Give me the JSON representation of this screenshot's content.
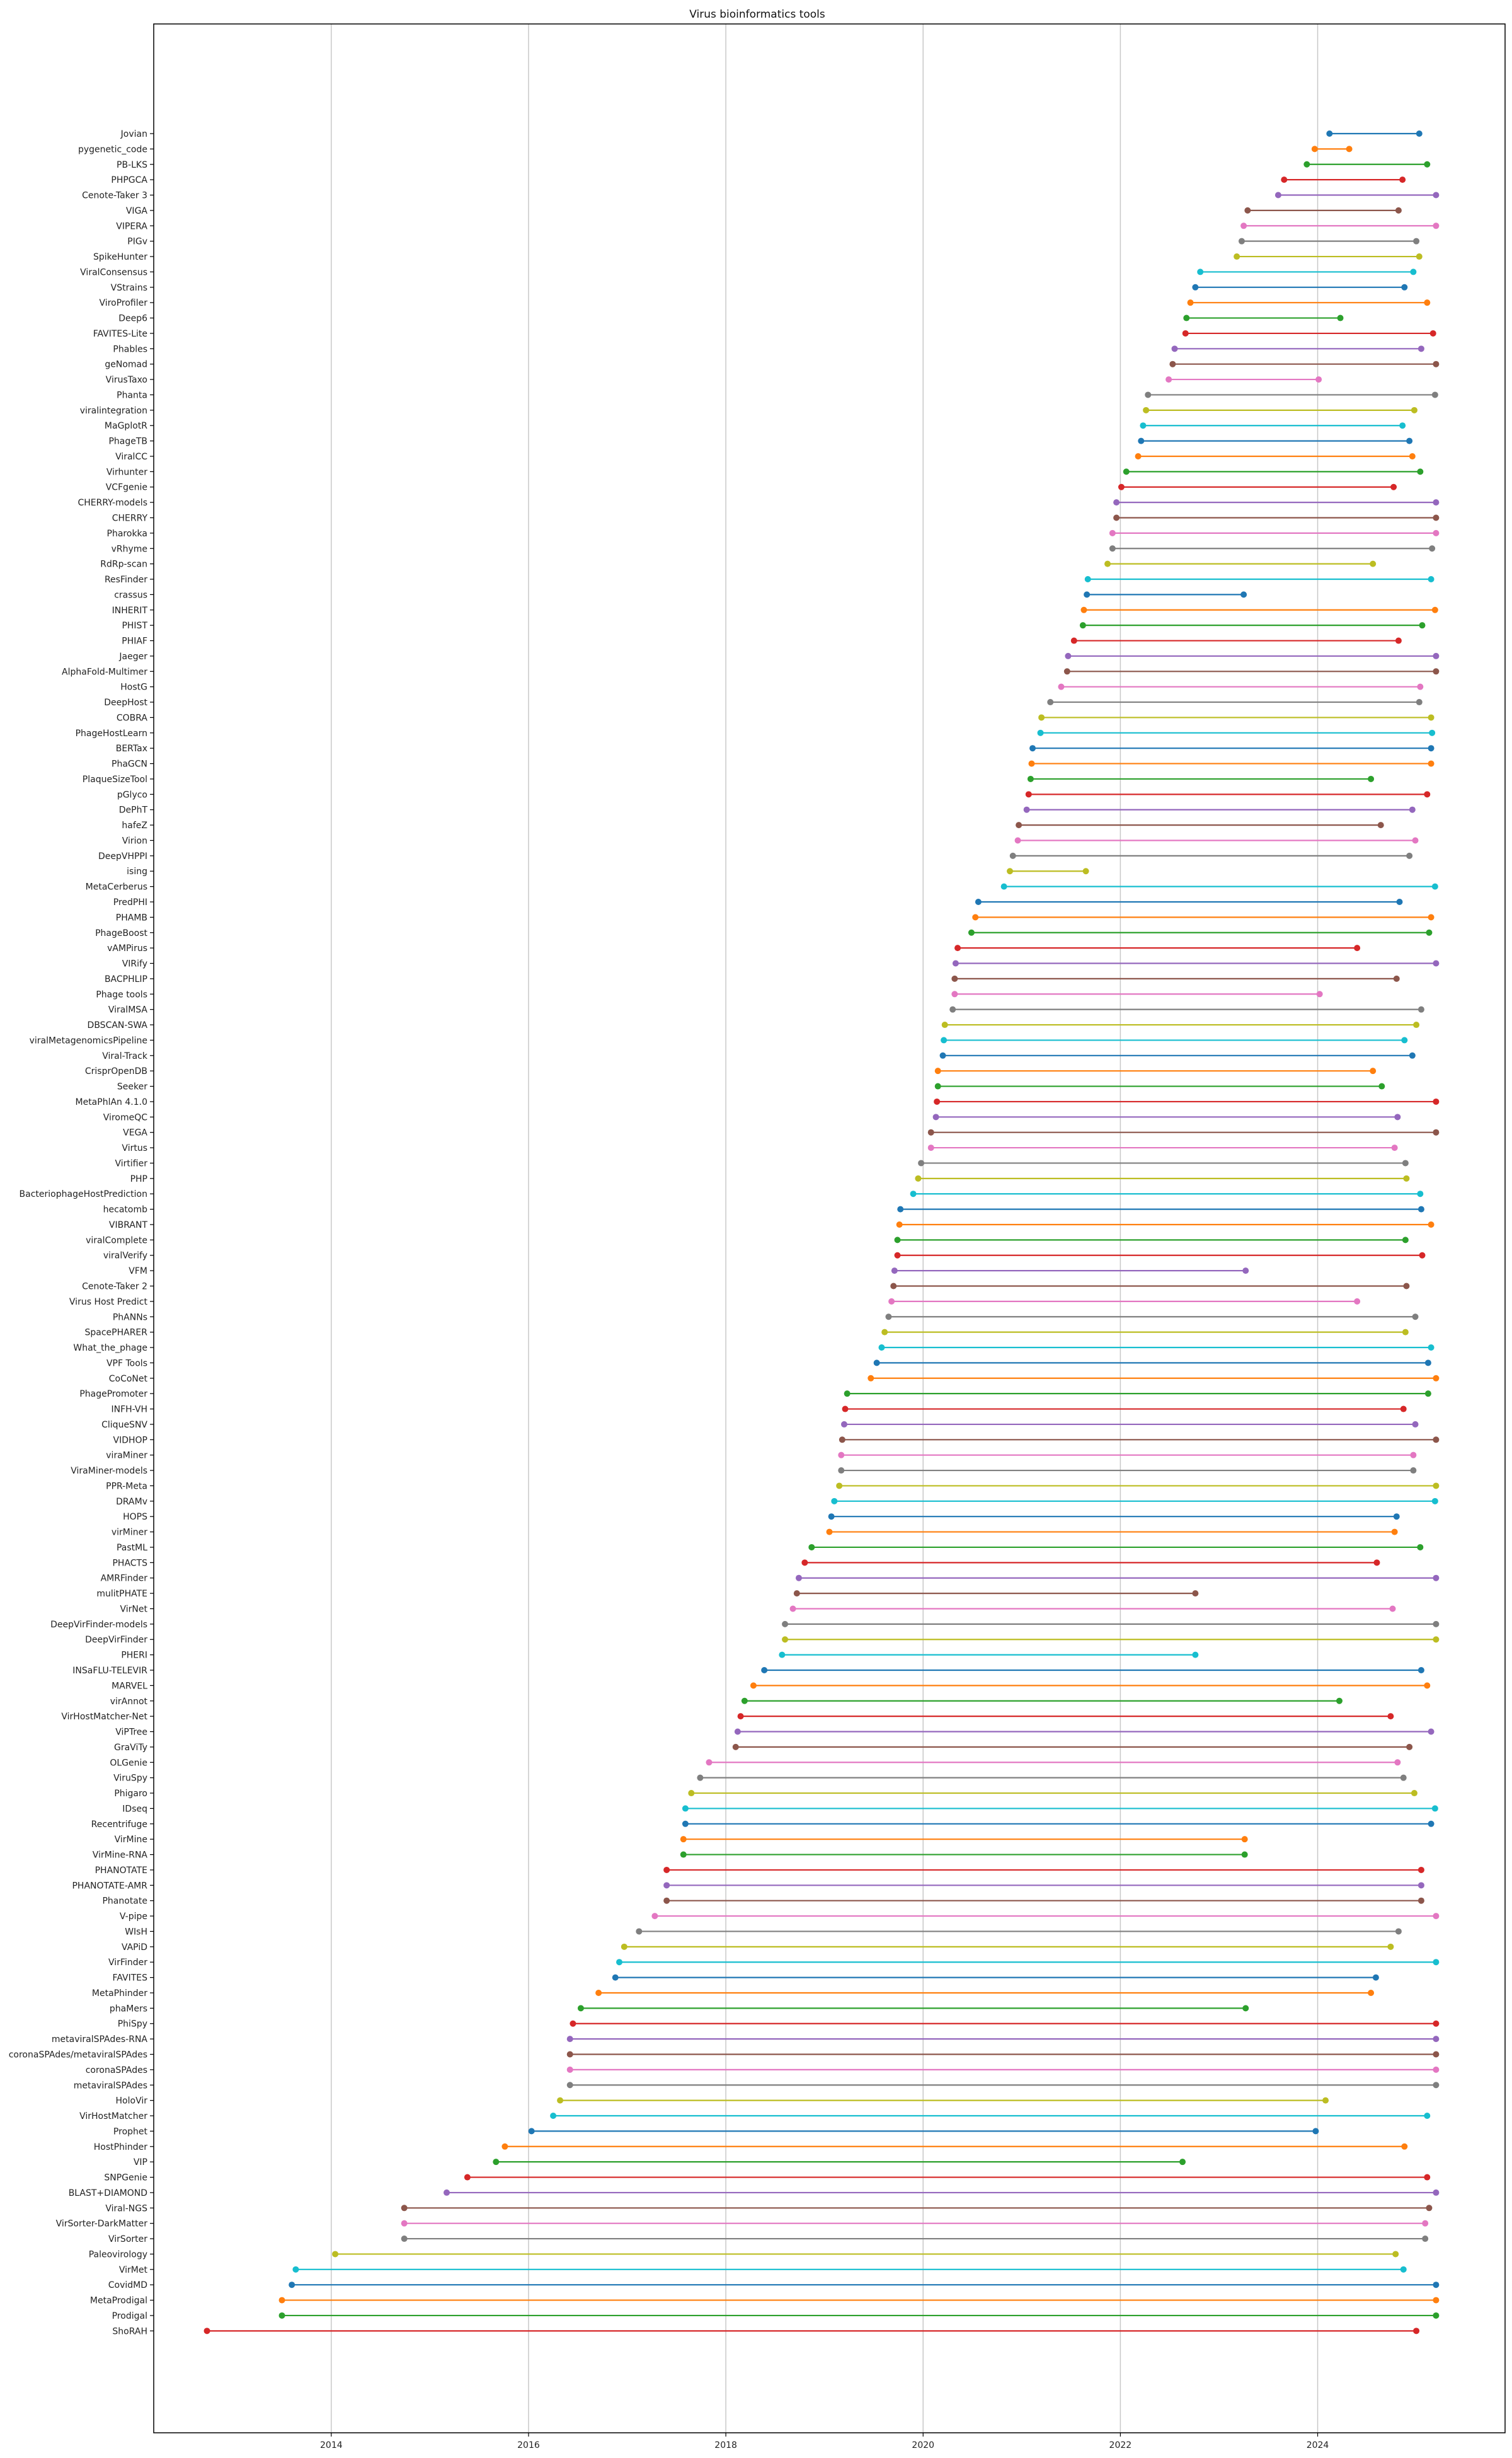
{
  "chart_data": {
    "type": "dumbbell",
    "title": "Virus bioinformatics tools",
    "xlabel": "",
    "ylabel": "",
    "x_axis": "year (decimal)",
    "xlim": [
      2012.2,
      2025.9
    ],
    "xticks": [
      2014,
      2016,
      2018,
      2020,
      2022,
      2024
    ],
    "grid": "vertical",
    "colors": [
      "#1f77b4",
      "#ff7f0e",
      "#2ca02c",
      "#d62728",
      "#9467bd",
      "#8c564b",
      "#e377c2",
      "#7f7f7f",
      "#bcbd22",
      "#17becf"
    ],
    "tools": [
      {
        "name": "Jovian",
        "start": 2024.12,
        "end": 2025.03
      },
      {
        "name": "pygenetic_code",
        "start": 2023.97,
        "end": 2024.32
      },
      {
        "name": "PB-LKS",
        "start": 2023.89,
        "end": 2025.11
      },
      {
        "name": "PHPGCA",
        "start": 2023.66,
        "end": 2024.86
      },
      {
        "name": "Cenote-Taker 3",
        "start": 2023.6,
        "end": 2025.2
      },
      {
        "name": "VIGA",
        "start": 2023.29,
        "end": 2024.82
      },
      {
        "name": "VIPERA",
        "start": 2023.25,
        "end": 2025.2
      },
      {
        "name": "PIGv",
        "start": 2023.23,
        "end": 2025.0
      },
      {
        "name": "SpikeHunter",
        "start": 2023.18,
        "end": 2025.03
      },
      {
        "name": "ViralConsensus",
        "start": 2022.81,
        "end": 2024.97
      },
      {
        "name": "VStrains",
        "start": 2022.76,
        "end": 2024.88
      },
      {
        "name": "ViroProfiler",
        "start": 2022.71,
        "end": 2025.11
      },
      {
        "name": "Deep6",
        "start": 2022.67,
        "end": 2024.23
      },
      {
        "name": "FAVITES-Lite",
        "start": 2022.66,
        "end": 2025.17
      },
      {
        "name": "Phables",
        "start": 2022.55,
        "end": 2025.05
      },
      {
        "name": "geNomad",
        "start": 2022.53,
        "end": 2025.2
      },
      {
        "name": "VirusTaxo",
        "start": 2022.49,
        "end": 2024.01
      },
      {
        "name": "Phanta",
        "start": 2022.28,
        "end": 2025.19
      },
      {
        "name": "viralintegration",
        "start": 2022.26,
        "end": 2024.98
      },
      {
        "name": "MaGplotR",
        "start": 2022.23,
        "end": 2024.86
      },
      {
        "name": "PhageTB",
        "start": 2022.21,
        "end": 2024.93
      },
      {
        "name": "ViralCC",
        "start": 2022.18,
        "end": 2024.96
      },
      {
        "name": "Virhunter",
        "start": 2022.06,
        "end": 2025.04
      },
      {
        "name": "VCFgenie",
        "start": 2022.01,
        "end": 2024.77
      },
      {
        "name": "CHERRY-models",
        "start": 2021.96,
        "end": 2025.2
      },
      {
        "name": "CHERRY",
        "start": 2021.96,
        "end": 2025.2
      },
      {
        "name": "Pharokka",
        "start": 2021.92,
        "end": 2025.2
      },
      {
        "name": "vRhyme",
        "start": 2021.92,
        "end": 2025.16
      },
      {
        "name": "RdRp-scan",
        "start": 2021.87,
        "end": 2024.56
      },
      {
        "name": "ResFinder",
        "start": 2021.67,
        "end": 2025.15
      },
      {
        "name": "crassus",
        "start": 2021.66,
        "end": 2023.25
      },
      {
        "name": "INHERIT",
        "start": 2021.63,
        "end": 2025.19
      },
      {
        "name": "PHIST",
        "start": 2021.62,
        "end": 2025.06
      },
      {
        "name": "PHIAF",
        "start": 2021.53,
        "end": 2024.82
      },
      {
        "name": "Jaeger",
        "start": 2021.47,
        "end": 2025.2
      },
      {
        "name": "AlphaFold-Multimer",
        "start": 2021.46,
        "end": 2025.2
      },
      {
        "name": "HostG",
        "start": 2021.4,
        "end": 2025.04
      },
      {
        "name": "DeepHost",
        "start": 2021.29,
        "end": 2025.03
      },
      {
        "name": "COBRA",
        "start": 2021.2,
        "end": 2025.15
      },
      {
        "name": "PhageHostLearn",
        "start": 2021.19,
        "end": 2025.16
      },
      {
        "name": "BERTax",
        "start": 2021.11,
        "end": 2025.15
      },
      {
        "name": "PhaGCN",
        "start": 2021.1,
        "end": 2025.15
      },
      {
        "name": "PlaqueSizeTool",
        "start": 2021.09,
        "end": 2024.54
      },
      {
        "name": "pGlyco",
        "start": 2021.07,
        "end": 2025.11
      },
      {
        "name": "DePhT",
        "start": 2021.05,
        "end": 2024.96
      },
      {
        "name": "hafeZ",
        "start": 2020.97,
        "end": 2024.64
      },
      {
        "name": "Virion",
        "start": 2020.96,
        "end": 2024.99
      },
      {
        "name": "DeepVHPPI",
        "start": 2020.91,
        "end": 2024.93
      },
      {
        "name": "ising",
        "start": 2020.88,
        "end": 2021.65
      },
      {
        "name": "MetaCerberus",
        "start": 2020.82,
        "end": 2025.19
      },
      {
        "name": "PredPHI",
        "start": 2020.56,
        "end": 2024.83
      },
      {
        "name": "PHAMB",
        "start": 2020.53,
        "end": 2025.15
      },
      {
        "name": "PhageBoost",
        "start": 2020.49,
        "end": 2025.13
      },
      {
        "name": "vAMPirus",
        "start": 2020.35,
        "end": 2024.4
      },
      {
        "name": "VIRify",
        "start": 2020.33,
        "end": 2025.2
      },
      {
        "name": "BACPHLIP",
        "start": 2020.32,
        "end": 2024.8
      },
      {
        "name": "Phage tools",
        "start": 2020.32,
        "end": 2024.02
      },
      {
        "name": "ViralMSA",
        "start": 2020.3,
        "end": 2025.05
      },
      {
        "name": "DBSCAN-SWA",
        "start": 2020.22,
        "end": 2025.0
      },
      {
        "name": "viralMetagenomicsPipeline",
        "start": 2020.21,
        "end": 2024.88
      },
      {
        "name": "Viral-Track",
        "start": 2020.2,
        "end": 2024.96
      },
      {
        "name": "CrisprOpenDB",
        "start": 2020.15,
        "end": 2024.56
      },
      {
        "name": "Seeker",
        "start": 2020.15,
        "end": 2024.65
      },
      {
        "name": "MetaPhlAn 4.1.0",
        "start": 2020.14,
        "end": 2025.2
      },
      {
        "name": "ViromeQC",
        "start": 2020.13,
        "end": 2024.81
      },
      {
        "name": "VEGA",
        "start": 2020.08,
        "end": 2025.2
      },
      {
        "name": "Virtus",
        "start": 2020.08,
        "end": 2024.78
      },
      {
        "name": "Virtifier",
        "start": 2019.98,
        "end": 2024.89
      },
      {
        "name": "PHP",
        "start": 2019.95,
        "end": 2024.9
      },
      {
        "name": "BacteriophageHostPrediction",
        "start": 2019.9,
        "end": 2025.04
      },
      {
        "name": "hecatomb",
        "start": 2019.77,
        "end": 2025.05
      },
      {
        "name": "VIBRANT",
        "start": 2019.76,
        "end": 2025.15
      },
      {
        "name": "viralComplete",
        "start": 2019.74,
        "end": 2024.89
      },
      {
        "name": "viralVerify",
        "start": 2019.74,
        "end": 2025.06
      },
      {
        "name": "VFM",
        "start": 2019.71,
        "end": 2023.27
      },
      {
        "name": "Cenote-Taker 2",
        "start": 2019.7,
        "end": 2024.9
      },
      {
        "name": "Virus Host Predict",
        "start": 2019.68,
        "end": 2024.4
      },
      {
        "name": "PhANNs",
        "start": 2019.65,
        "end": 2024.99
      },
      {
        "name": "SpacePHARER",
        "start": 2019.61,
        "end": 2024.89
      },
      {
        "name": "What_the_phage",
        "start": 2019.58,
        "end": 2025.15
      },
      {
        "name": "VPF Tools",
        "start": 2019.53,
        "end": 2025.12
      },
      {
        "name": "CoCoNet",
        "start": 2019.47,
        "end": 2025.2
      },
      {
        "name": "PhagePromoter",
        "start": 2019.23,
        "end": 2025.12
      },
      {
        "name": "INFH-VH",
        "start": 2019.21,
        "end": 2024.87
      },
      {
        "name": "CliqueSNV",
        "start": 2019.2,
        "end": 2024.99
      },
      {
        "name": "VIDHOP",
        "start": 2019.18,
        "end": 2025.2
      },
      {
        "name": "viraMiner",
        "start": 2019.17,
        "end": 2024.97
      },
      {
        "name": "ViraMiner-models",
        "start": 2019.17,
        "end": 2024.97
      },
      {
        "name": "PPR-Meta",
        "start": 2019.15,
        "end": 2025.2
      },
      {
        "name": "DRAMv",
        "start": 2019.1,
        "end": 2025.19
      },
      {
        "name": "HOPS",
        "start": 2019.07,
        "end": 2024.8
      },
      {
        "name": "virMiner",
        "start": 2019.05,
        "end": 2024.78
      },
      {
        "name": "PastML",
        "start": 2018.87,
        "end": 2025.04
      },
      {
        "name": "PHACTS",
        "start": 2018.8,
        "end": 2024.6
      },
      {
        "name": "AMRFinder",
        "start": 2018.74,
        "end": 2025.2
      },
      {
        "name": "mulitPHATE",
        "start": 2018.72,
        "end": 2022.76
      },
      {
        "name": "VirNet",
        "start": 2018.68,
        "end": 2024.76
      },
      {
        "name": "DeepVirFinder-models",
        "start": 2018.6,
        "end": 2025.2
      },
      {
        "name": "DeepVirFinder",
        "start": 2018.6,
        "end": 2025.2
      },
      {
        "name": "PHERI",
        "start": 2018.57,
        "end": 2022.76
      },
      {
        "name": "INSaFLU-TELEVIR",
        "start": 2018.39,
        "end": 2025.05
      },
      {
        "name": "MARVEL",
        "start": 2018.28,
        "end": 2025.11
      },
      {
        "name": "virAnnot",
        "start": 2018.19,
        "end": 2024.22
      },
      {
        "name": "VirHostMatcher-Net",
        "start": 2018.15,
        "end": 2024.74
      },
      {
        "name": "ViPTree",
        "start": 2018.12,
        "end": 2025.15
      },
      {
        "name": "GraViTy",
        "start": 2018.1,
        "end": 2024.93
      },
      {
        "name": "OLGenie",
        "start": 2017.83,
        "end": 2024.81
      },
      {
        "name": "ViruSpy",
        "start": 2017.74,
        "end": 2024.87
      },
      {
        "name": "Phigaro",
        "start": 2017.65,
        "end": 2024.98
      },
      {
        "name": "IDseq",
        "start": 2017.59,
        "end": 2025.19
      },
      {
        "name": "Recentrifuge",
        "start": 2017.59,
        "end": 2025.15
      },
      {
        "name": "VirMine",
        "start": 2017.57,
        "end": 2023.26
      },
      {
        "name": "VirMine-RNA",
        "start": 2017.57,
        "end": 2023.26
      },
      {
        "name": "PHANOTATE",
        "start": 2017.4,
        "end": 2025.05
      },
      {
        "name": "PHANOTATE-AMR",
        "start": 2017.4,
        "end": 2025.05
      },
      {
        "name": "Phanotate",
        "start": 2017.4,
        "end": 2025.05
      },
      {
        "name": "V-pipe",
        "start": 2017.28,
        "end": 2025.2
      },
      {
        "name": "WIsH",
        "start": 2017.12,
        "end": 2024.82
      },
      {
        "name": "VAPiD",
        "start": 2016.97,
        "end": 2024.74
      },
      {
        "name": "VirFinder",
        "start": 2016.92,
        "end": 2025.2
      },
      {
        "name": "FAVITES",
        "start": 2016.88,
        "end": 2024.59
      },
      {
        "name": "MetaPhinder",
        "start": 2016.71,
        "end": 2024.54
      },
      {
        "name": "phaMers",
        "start": 2016.53,
        "end": 2023.27
      },
      {
        "name": "PhiSpy",
        "start": 2016.45,
        "end": 2025.2
      },
      {
        "name": "metaviralSPAdes-RNA",
        "start": 2016.42,
        "end": 2025.2
      },
      {
        "name": "coronaSPAdes/metaviralSPAdes",
        "start": 2016.42,
        "end": 2025.2
      },
      {
        "name": "coronaSPAdes",
        "start": 2016.42,
        "end": 2025.2
      },
      {
        "name": "metaviralSPAdes",
        "start": 2016.42,
        "end": 2025.2
      },
      {
        "name": "HoloVir",
        "start": 2016.32,
        "end": 2024.08
      },
      {
        "name": "VirHostMatcher",
        "start": 2016.25,
        "end": 2025.11
      },
      {
        "name": "Prophet",
        "start": 2016.03,
        "end": 2023.98
      },
      {
        "name": "HostPhinder",
        "start": 2015.76,
        "end": 2024.88
      },
      {
        "name": "VIP",
        "start": 2015.67,
        "end": 2022.63
      },
      {
        "name": "SNPGenie",
        "start": 2015.38,
        "end": 2025.11
      },
      {
        "name": "BLAST+DIAMOND",
        "start": 2015.17,
        "end": 2025.2
      },
      {
        "name": "Viral-NGS",
        "start": 2014.74,
        "end": 2025.13
      },
      {
        "name": "VirSorter-DarkMatter",
        "start": 2014.74,
        "end": 2025.09
      },
      {
        "name": "VirSorter",
        "start": 2014.74,
        "end": 2025.09
      },
      {
        "name": "Paleovirology",
        "start": 2014.04,
        "end": 2024.79
      },
      {
        "name": "VirMet",
        "start": 2013.64,
        "end": 2024.87
      },
      {
        "name": "CovidMD",
        "start": 2013.6,
        "end": 2025.2
      },
      {
        "name": "MetaProdigal",
        "start": 2013.5,
        "end": 2025.2
      },
      {
        "name": "Prodigal",
        "start": 2013.5,
        "end": 2025.2
      },
      {
        "name": "ShoRAH",
        "start": 2012.74,
        "end": 2025.0
      }
    ]
  }
}
